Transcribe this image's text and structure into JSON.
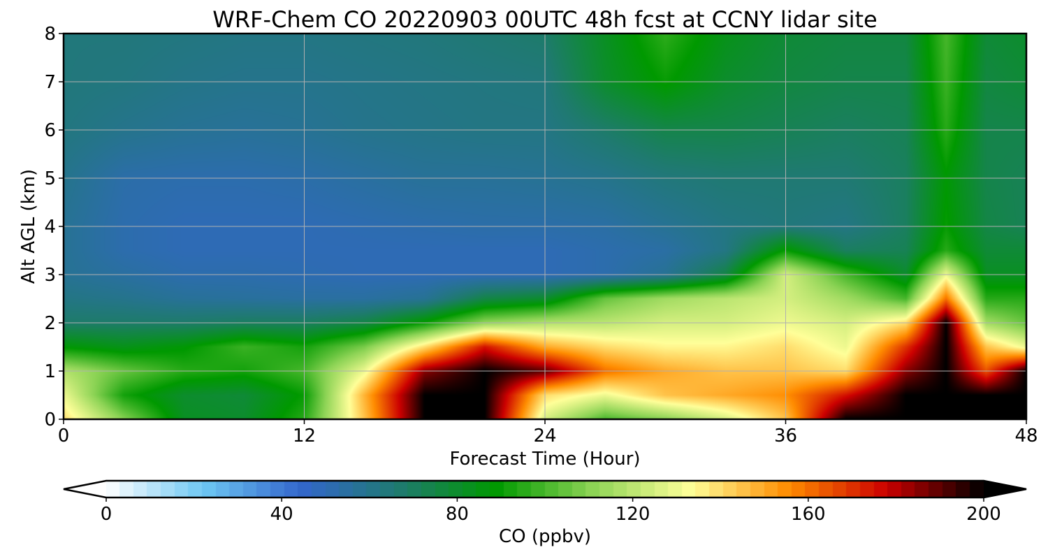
{
  "chart_data": {
    "type": "heatmap",
    "title": "WRF-Chem CO  20220903 00UTC 48h fcst at CCNY lidar site",
    "xlabel": "Forecast Time (Hour)",
    "ylabel": "Alt AGL (km)",
    "xlim": [
      0,
      48
    ],
    "ylim": [
      0,
      8
    ],
    "x_ticks": [
      "0",
      "12",
      "24",
      "36",
      "48"
    ],
    "y_ticks": [
      "0",
      "1",
      "2",
      "3",
      "4",
      "5",
      "6",
      "7",
      "8"
    ],
    "grid": true,
    "colorbar": {
      "label": "CO  (ppbv)",
      "range": [
        0,
        200
      ],
      "ticks": [
        "0",
        "40",
        "80",
        "120",
        "160",
        "200"
      ],
      "extend": "both",
      "colors": [
        "#ffffff",
        "#6dc7f3",
        "#3366cc",
        "#1f7a70",
        "#009900",
        "#8ed456",
        "#ffff99",
        "#ff8c00",
        "#cc0000",
        "#000000"
      ]
    },
    "x": [
      0,
      3,
      6,
      9,
      12,
      15,
      18,
      21,
      24,
      27,
      30,
      33,
      36,
      39,
      42,
      44,
      46,
      48
    ],
    "y": [
      0,
      0.5,
      1,
      1.5,
      2,
      2.5,
      3,
      3.5,
      4,
      5,
      6,
      7,
      8
    ],
    "z": [
      [
        140,
        110,
        82,
        80,
        95,
        145,
        200,
        200,
        125,
        100,
        110,
        125,
        145,
        200,
        200,
        200,
        200,
        200
      ],
      [
        130,
        92,
        80,
        78,
        90,
        148,
        200,
        200,
        140,
        130,
        145,
        150,
        155,
        175,
        200,
        200,
        200,
        200
      ],
      [
        118,
        105,
        95,
        92,
        100,
        130,
        185,
        200,
        190,
        160,
        150,
        145,
        145,
        140,
        185,
        200,
        165,
        200
      ],
      [
        88,
        84,
        88,
        98,
        92,
        108,
        140,
        175,
        150,
        140,
        135,
        135,
        140,
        130,
        170,
        200,
        145,
        130
      ],
      [
        68,
        68,
        68,
        70,
        70,
        75,
        90,
        112,
        118,
        120,
        125,
        125,
        130,
        125,
        140,
        200,
        115,
        105
      ],
      [
        62,
        60,
        57,
        56,
        55,
        55,
        58,
        75,
        80,
        105,
        115,
        120,
        125,
        115,
        100,
        160,
        95,
        95
      ],
      [
        58,
        55,
        52,
        52,
        51,
        50,
        50,
        50,
        50,
        52,
        58,
        75,
        125,
        100,
        80,
        130,
        82,
        82
      ],
      [
        58,
        52,
        50,
        50,
        50,
        50,
        50,
        50,
        50,
        52,
        54,
        62,
        90,
        70,
        72,
        95,
        78,
        78
      ],
      [
        58,
        52,
        50,
        50,
        50,
        51,
        52,
        53,
        53,
        54,
        58,
        62,
        64,
        62,
        70,
        90,
        75,
        72
      ],
      [
        60,
        53,
        52,
        52,
        53,
        55,
        57,
        57,
        58,
        60,
        64,
        66,
        66,
        66,
        70,
        88,
        74,
        72
      ],
      [
        63,
        60,
        58,
        57,
        58,
        60,
        61,
        62,
        62,
        68,
        74,
        74,
        72,
        70,
        72,
        95,
        74,
        74
      ],
      [
        64,
        63,
        61,
        60,
        60,
        61,
        62,
        63,
        64,
        80,
        90,
        80,
        76,
        74,
        74,
        98,
        76,
        78
      ],
      [
        64,
        64,
        63,
        62,
        62,
        63,
        64,
        66,
        68,
        82,
        96,
        84,
        78,
        76,
        76,
        100,
        78,
        80
      ]
    ]
  }
}
